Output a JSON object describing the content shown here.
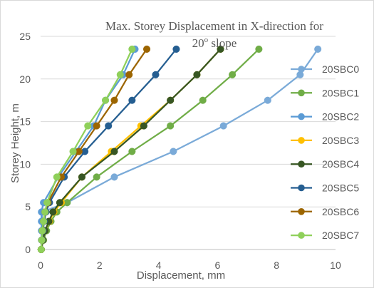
{
  "chart_data": {
    "type": "line",
    "title_line1": "Max. Storey Displacement in X-direction for",
    "title_line2_prefix": "20",
    "title_line2_sup": "o",
    "title_line2_suffix": " slope",
    "xlabel": "Displacement, mm",
    "ylabel": "Storey Height, m",
    "xlim": [
      0,
      10
    ],
    "ylim": [
      0,
      25
    ],
    "xticks": [
      "0",
      "2",
      "4",
      "6",
      "8",
      "10"
    ],
    "yticks": [
      "0",
      "5",
      "10",
      "15",
      "20",
      "25"
    ],
    "grid": "horizontal",
    "legend_position": "right",
    "y": [
      0,
      1.1,
      2.2,
      3.3,
      4.4,
      5.5,
      8.5,
      11.5,
      14.5,
      17.5,
      20.5,
      23.5
    ],
    "series": [
      {
        "name": "20SBC0",
        "color": "#7aaad8",
        "x": [
          0.02,
          0.05,
          0.05,
          0.05,
          0.05,
          0.9,
          2.5,
          4.5,
          6.2,
          7.7,
          8.8,
          9.4
        ]
      },
      {
        "name": "20SBC1",
        "color": "#70ad47",
        "x": [
          0.02,
          0.1,
          0.2,
          0.35,
          0.55,
          0.9,
          1.9,
          3.1,
          4.4,
          5.5,
          6.5,
          7.4
        ]
      },
      {
        "name": "20SBC2",
        "color": "#5b9bd5",
        "x": [
          0.02,
          0.03,
          0.03,
          0.03,
          0.03,
          0.1,
          0.6,
          1.2,
          1.8,
          2.2,
          2.8,
          3.2
        ]
      },
      {
        "name": "20SBC3",
        "color": "#ffc000",
        "x": [
          0.02,
          0.08,
          0.15,
          0.3,
          0.45,
          0.7,
          1.4,
          2.4,
          3.4,
          4.4,
          5.3,
          6.1
        ]
      },
      {
        "name": "20SBC4",
        "color": "#375623",
        "x": [
          0.02,
          0.08,
          0.15,
          0.28,
          0.42,
          0.65,
          1.4,
          2.5,
          3.5,
          4.4,
          5.3,
          6.1
        ]
      },
      {
        "name": "20SBC5",
        "color": "#255e91",
        "x": [
          0.02,
          0.05,
          0.08,
          0.12,
          0.18,
          0.3,
          0.8,
          1.5,
          2.3,
          3.1,
          3.9,
          4.6
        ]
      },
      {
        "name": "20SBC6",
        "color": "#9c6500",
        "x": [
          0.02,
          0.04,
          0.06,
          0.1,
          0.15,
          0.25,
          0.7,
          1.3,
          1.9,
          2.5,
          3.0,
          3.6
        ]
      },
      {
        "name": "20SBC7",
        "color": "#8fd05a",
        "x": [
          0.02,
          0.04,
          0.06,
          0.1,
          0.15,
          0.22,
          0.55,
          1.1,
          1.6,
          2.2,
          2.7,
          3.1
        ]
      }
    ]
  }
}
